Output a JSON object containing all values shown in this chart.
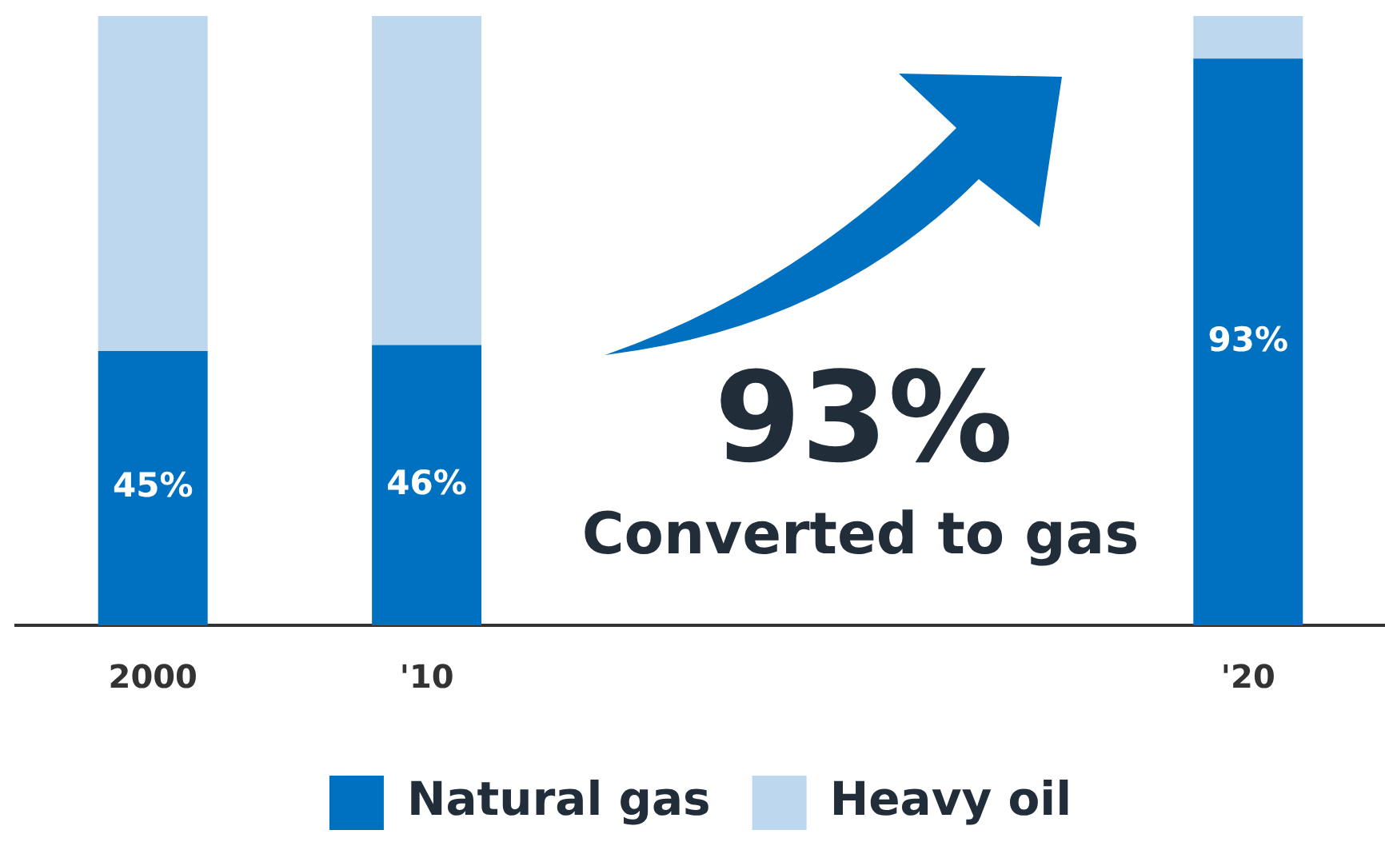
{
  "chart_data": {
    "type": "bar",
    "stacked": true,
    "categories": [
      "2000",
      "'10",
      null,
      null,
      "'20"
    ],
    "series": [
      {
        "name": "Natural gas",
        "color": "#0070c0",
        "values": [
          45,
          46,
          null,
          null,
          93
        ],
        "value_labels": [
          "45%",
          "46%",
          null,
          null,
          "93%"
        ]
      },
      {
        "name": "Heavy oil",
        "color": "#bdd7ee",
        "values": [
          55,
          54,
          null,
          null,
          7
        ]
      }
    ],
    "annotations": [
      "93%",
      "Converted to gas"
    ],
    "grid": false,
    "legend": "bottom"
  }
}
